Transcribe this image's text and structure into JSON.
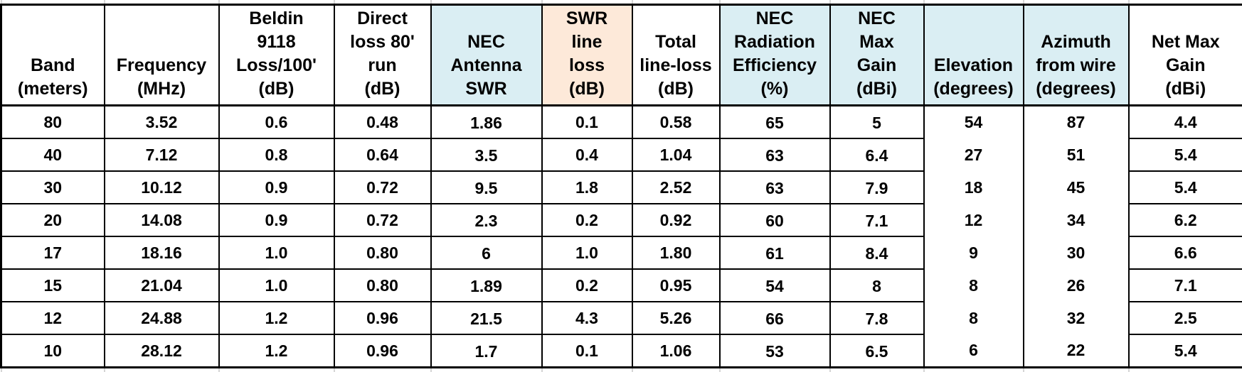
{
  "colors": {
    "highlight_blue": "#daeef3",
    "highlight_peach": "#fde9d9",
    "border_black": "#000000",
    "gridline_gray": "#d5d5d5"
  },
  "chart_data": {
    "type": "table",
    "columns": [
      {
        "id": "band",
        "label": "Band\n(meters)"
      },
      {
        "id": "frequency",
        "label": "Frequency\n(MHz)"
      },
      {
        "id": "beldin-loss",
        "label": "Beldin\n9118\nLoss/100'\n(dB)"
      },
      {
        "id": "direct-loss",
        "label": "Direct\nloss 80'\nrun\n(dB)"
      },
      {
        "id": "nec-antenna-swr",
        "label": "NEC\nAntenna\nSWR"
      },
      {
        "id": "swr-line-loss",
        "label": "SWR\nline\nloss\n(dB)"
      },
      {
        "id": "total-line-loss",
        "label": "Total\nline-loss\n(dB)"
      },
      {
        "id": "nec-radiation-efficiency",
        "label": "NEC\nRadiation\nEfficiency\n(%)"
      },
      {
        "id": "nec-max-gain",
        "label": "NEC\nMax\nGain\n(dBi)"
      },
      {
        "id": "elevation",
        "label": "Elevation\n(degrees)"
      },
      {
        "id": "azimuth",
        "label": "Azimuth\nfrom wire\n(degrees)"
      },
      {
        "id": "net-max-gain",
        "label": "Net Max\nGain\n(dBi)"
      }
    ],
    "rows": [
      [
        "80",
        "3.52",
        "0.6",
        "0.48",
        "1.86",
        "0.1",
        "0.58",
        "65",
        "5",
        "54",
        "87",
        "4.4"
      ],
      [
        "40",
        "7.12",
        "0.8",
        "0.64",
        "3.5",
        "0.4",
        "1.04",
        "63",
        "6.4",
        "27",
        "51",
        "5.4"
      ],
      [
        "30",
        "10.12",
        "0.9",
        "0.72",
        "9.5",
        "1.8",
        "2.52",
        "63",
        "7.9",
        "18",
        "45",
        "5.4"
      ],
      [
        "20",
        "14.08",
        "0.9",
        "0.72",
        "2.3",
        "0.2",
        "0.92",
        "60",
        "7.1",
        "12",
        "34",
        "6.2"
      ],
      [
        "17",
        "18.16",
        "1.0",
        "0.80",
        "6",
        "1.0",
        "1.80",
        "61",
        "8.4",
        "9",
        "30",
        "6.6"
      ],
      [
        "15",
        "21.04",
        "1.0",
        "0.80",
        "1.89",
        "0.2",
        "0.95",
        "54",
        "8",
        "8",
        "26",
        "7.1"
      ],
      [
        "12",
        "24.88",
        "1.2",
        "0.96",
        "21.5",
        "4.3",
        "5.26",
        "66",
        "7.8",
        "8",
        "32",
        "2.5"
      ],
      [
        "10",
        "28.12",
        "1.2",
        "0.96",
        "1.7",
        "0.1",
        "1.06",
        "53",
        "6.5",
        "6",
        "22",
        "5.4"
      ]
    ]
  }
}
